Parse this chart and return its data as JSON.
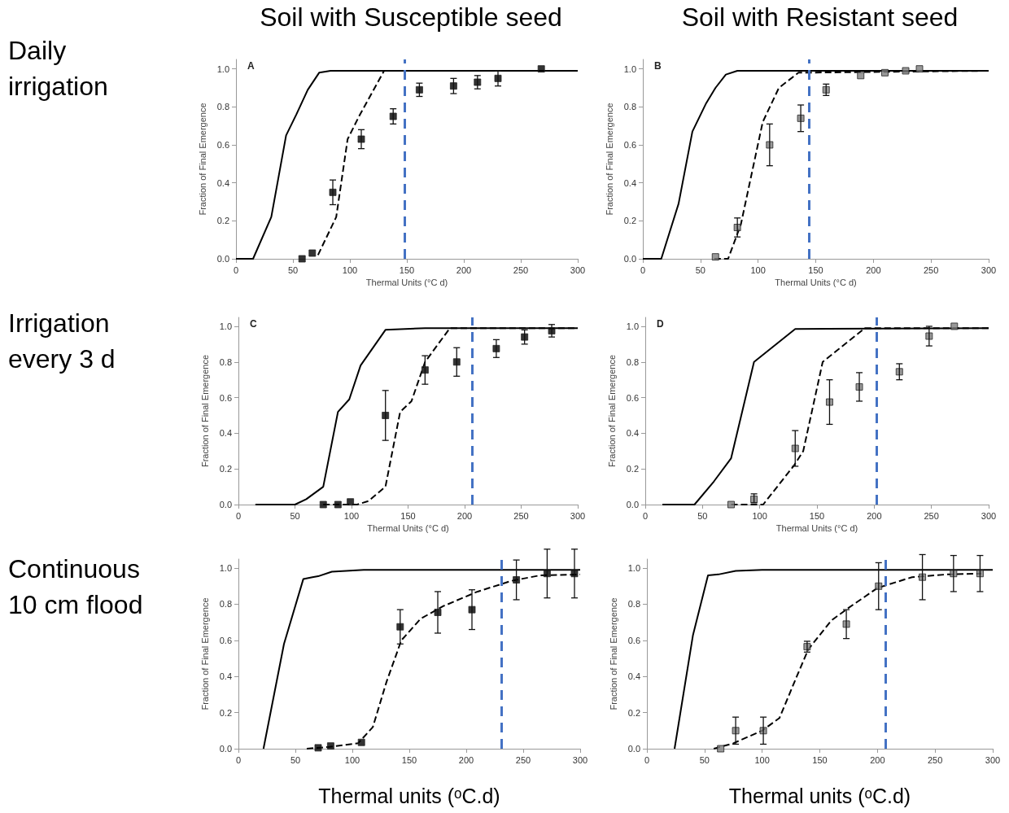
{
  "chart_data": [
    {
      "type": "line",
      "title": "Soil with Susceptible seed",
      "subtitle": "A",
      "annotations": [
        "Daily irrigation"
      ],
      "xlabel": "Thermal Units (°C d)",
      "ylabel": "Fraction of Final Emergence",
      "xlim": [
        0,
        300
      ],
      "ylim": [
        0,
        1.05
      ],
      "xticks": [
        0,
        50,
        100,
        150,
        200,
        250,
        300
      ],
      "yticks": [
        {
          "value": 0,
          "label": "0.0"
        },
        {
          "value": 0.2,
          "label": "0.2"
        },
        {
          "value": 0.4,
          "label": "0.4"
        },
        {
          "value": 0.6,
          "label": "0.6"
        },
        {
          "value": 0.8,
          "label": "0.8"
        },
        {
          "value": 1,
          "label": "1.0"
        }
      ],
      "series": [
        {
          "type": "line",
          "color": "#000000",
          "line_style": "solid",
          "marker": "none",
          "x": [
            0,
            15,
            31,
            44,
            53,
            63,
            73,
            83,
            300
          ],
          "values": [
            0,
            0,
            0.22,
            0.65,
            0.76,
            0.89,
            0.98,
            0.99,
            0.99
          ]
        },
        {
          "type": "line",
          "color": "#000000",
          "line_style": "dashed",
          "marker": "none",
          "x": [
            72,
            88,
            98,
            108,
            130,
            300
          ],
          "values": [
            0.02,
            0.22,
            0.63,
            0.75,
            0.99,
            0.99
          ]
        },
        {
          "type": "scatter",
          "color": "#000000",
          "marker": "square",
          "x": [
            58,
            67,
            85,
            110,
            138,
            161,
            191,
            212,
            230,
            268
          ],
          "values": [
            0,
            0.03,
            0.35,
            0.63,
            0.75,
            0.89,
            0.91,
            0.93,
            0.95,
            1.0
          ],
          "errors": [
            null,
            null,
            0.065,
            0.05,
            0.04,
            0.035,
            0.04,
            0.035,
            0.04,
            null
          ]
        }
      ],
      "ref_lines": [
        {
          "axis": "x",
          "value": 148,
          "color": "#4472c4",
          "line_style": "dashed"
        }
      ]
    },
    {
      "type": "line",
      "title": "Soil with Resistant seed",
      "subtitle": "B",
      "xlabel": "Thermal Units (°C d)",
      "ylabel": "Fraction of Final Emergence",
      "xlim": [
        0,
        300
      ],
      "ylim": [
        0,
        1.05
      ],
      "xticks": [
        0,
        50,
        100,
        150,
        200,
        250,
        300
      ],
      "yticks": [
        {
          "value": 0,
          "label": "0.0"
        },
        {
          "value": 0.2,
          "label": "0.2"
        },
        {
          "value": 0.4,
          "label": "0.4"
        },
        {
          "value": 0.6,
          "label": "0.6"
        },
        {
          "value": 0.8,
          "label": "0.8"
        },
        {
          "value": 1,
          "label": "1.0"
        }
      ],
      "series": [
        {
          "type": "line",
          "color": "#000000",
          "line_style": "solid",
          "marker": "none",
          "x": [
            0,
            16,
            31,
            43,
            55,
            63,
            72,
            82,
            300
          ],
          "values": [
            0,
            0,
            0.29,
            0.67,
            0.82,
            0.9,
            0.97,
            0.99,
            0.99
          ]
        },
        {
          "type": "line",
          "color": "#000000",
          "line_style": "dashed",
          "marker": "none",
          "x": [
            62,
            74,
            85,
            104,
            118,
            135,
            300
          ],
          "values": [
            0,
            0,
            0.18,
            0.72,
            0.9,
            0.98,
            0.99
          ]
        },
        {
          "type": "scatter",
          "color": "#808080",
          "marker": "square",
          "x": [
            63,
            82,
            110,
            137,
            159,
            189,
            210,
            228,
            240
          ],
          "values": [
            0.01,
            0.165,
            0.6,
            0.74,
            0.89,
            0.965,
            0.98,
            0.99,
            1.0
          ],
          "errors": [
            null,
            0.05,
            0.11,
            0.07,
            0.03,
            null,
            null,
            null,
            null
          ]
        }
      ],
      "ref_lines": [
        {
          "axis": "x",
          "value": 144,
          "color": "#4472c4",
          "line_style": "dashed"
        }
      ]
    },
    {
      "type": "line",
      "subtitle": "C",
      "annotations": [
        "Irrigation every 3 d"
      ],
      "xlabel": "Thermal Units (°C d)",
      "ylabel": "Fraction of Final Emergence",
      "xlim": [
        0,
        300
      ],
      "ylim": [
        0,
        1.05
      ],
      "xticks": [
        0,
        50,
        100,
        150,
        200,
        250,
        300
      ],
      "yticks": [
        {
          "value": 0,
          "label": "0.0"
        },
        {
          "value": 0.2,
          "label": "0.2"
        },
        {
          "value": 0.4,
          "label": "0.4"
        },
        {
          "value": 0.6,
          "label": "0.6"
        },
        {
          "value": 0.8,
          "label": "0.8"
        },
        {
          "value": 1,
          "label": "1.0"
        }
      ],
      "series": [
        {
          "type": "line",
          "color": "#000000",
          "line_style": "solid",
          "marker": "none",
          "x": [
            15,
            50,
            60,
            75,
            88,
            98,
            108,
            130,
            165,
            300
          ],
          "values": [
            0,
            0,
            0.03,
            0.1,
            0.52,
            0.59,
            0.78,
            0.98,
            0.99,
            0.99
          ]
        },
        {
          "type": "line",
          "color": "#000000",
          "line_style": "dashed",
          "marker": "none",
          "x": [
            75,
            105,
            115,
            130,
            143,
            153,
            165,
            187,
            300
          ],
          "values": [
            0,
            0,
            0.02,
            0.1,
            0.52,
            0.58,
            0.8,
            0.99,
            0.99
          ]
        },
        {
          "type": "scatter",
          "color": "#000000",
          "marker": "square",
          "x": [
            75,
            88,
            99,
            130,
            165,
            193,
            228,
            253,
            277
          ],
          "values": [
            0,
            0,
            0.015,
            0.5,
            0.755,
            0.8,
            0.875,
            0.94,
            0.975
          ],
          "errors": [
            null,
            null,
            null,
            0.14,
            0.08,
            0.08,
            0.05,
            0.04,
            0.035
          ]
        }
      ],
      "ref_lines": [
        {
          "axis": "x",
          "value": 207,
          "color": "#4472c4",
          "line_style": "dashed"
        }
      ]
    },
    {
      "type": "line",
      "subtitle": "D",
      "xlabel": "Thermal Units (°C d)",
      "ylabel": "Fraction of Final Emergence",
      "xlim": [
        0,
        300
      ],
      "ylim": [
        0,
        1.05
      ],
      "xticks": [
        0,
        50,
        100,
        150,
        200,
        250,
        300
      ],
      "yticks": [
        {
          "value": 0,
          "label": "0.0"
        },
        {
          "value": 0.2,
          "label": "0.2"
        },
        {
          "value": 0.4,
          "label": "0.4"
        },
        {
          "value": 0.6,
          "label": "0.6"
        },
        {
          "value": 0.8,
          "label": "0.8"
        },
        {
          "value": 1,
          "label": "1.0"
        }
      ],
      "series": [
        {
          "type": "line",
          "color": "#000000",
          "line_style": "solid",
          "marker": "none",
          "x": [
            15,
            43,
            60,
            75,
            95,
            131,
            300
          ],
          "values": [
            0,
            0,
            0.13,
            0.26,
            0.8,
            0.985,
            0.99
          ]
        },
        {
          "type": "line",
          "color": "#000000",
          "line_style": "dashed",
          "marker": "none",
          "x": [
            75,
            103,
            130,
            138,
            155,
            192,
            300
          ],
          "values": [
            0,
            0,
            0.22,
            0.3,
            0.8,
            0.99,
            0.99
          ]
        },
        {
          "type": "scatter",
          "color": "#808080",
          "marker": "square",
          "x": [
            75,
            95,
            131,
            161,
            187,
            222,
            248,
            270
          ],
          "values": [
            0,
            0.03,
            0.315,
            0.575,
            0.66,
            0.745,
            0.945,
            1.0
          ],
          "errors": [
            null,
            [
              0.01,
              0.06
            ],
            0.1,
            0.125,
            0.08,
            0.045,
            0.055,
            null
          ]
        }
      ],
      "ref_lines": [
        {
          "axis": "x",
          "value": 202,
          "color": "#4472c4",
          "line_style": "dashed"
        }
      ]
    },
    {
      "type": "line",
      "annotations": [
        "Continuous 10 cm flood"
      ],
      "xlabel": "Thermal units (ᵒC.d)",
      "ylabel": "Fraction of Final Emergence",
      "xlim": [
        0,
        300
      ],
      "ylim": [
        0,
        1.05
      ],
      "xticks": [
        0,
        50,
        100,
        150,
        200,
        250,
        300
      ],
      "yticks": [
        {
          "value": 0,
          "label": "0.0"
        },
        {
          "value": 0.2,
          "label": "0.2"
        },
        {
          "value": 0.4,
          "label": "0.4"
        },
        {
          "value": 0.6,
          "label": "0.6"
        },
        {
          "value": 0.8,
          "label": "0.8"
        },
        {
          "value": 1,
          "label": "1.0"
        }
      ],
      "series": [
        {
          "type": "line",
          "color": "#000000",
          "line_style": "solid",
          "marker": "none",
          "x": [
            22,
            40,
            57,
            65,
            70,
            82,
            110,
            300
          ],
          "values": [
            0,
            0.58,
            0.94,
            0.95,
            0.955,
            0.98,
            0.99,
            0.99
          ]
        },
        {
          "type": "line",
          "color": "#000000",
          "line_style": "dashed",
          "marker": "none",
          "x": [
            60,
            80,
            105,
            118,
            130,
            143,
            160,
            180,
            210,
            240,
            265,
            300
          ],
          "values": [
            0,
            0.01,
            0.03,
            0.12,
            0.37,
            0.6,
            0.72,
            0.79,
            0.87,
            0.93,
            0.96,
            0.965
          ]
        },
        {
          "type": "scatter",
          "color": "#000000",
          "marker": "square",
          "x": [
            70,
            81,
            108,
            142,
            175,
            205,
            244,
            271,
            295
          ],
          "values": [
            0.005,
            0.015,
            0.035,
            0.675,
            0.755,
            0.77,
            0.935,
            0.97,
            0.97
          ],
          "errors": [
            null,
            null,
            null,
            0.095,
            0.115,
            0.11,
            0.11,
            0.135,
            0.135
          ]
        }
      ],
      "ref_lines": [
        {
          "axis": "x",
          "value": 231,
          "color": "#4472c4",
          "line_style": "dashed"
        }
      ]
    },
    {
      "type": "line",
      "xlabel": "Thermal units (ᵒC.d)",
      "ylabel": "Fraction of Final Emergence",
      "xlim": [
        0,
        300
      ],
      "ylim": [
        0,
        1.05
      ],
      "xticks": [
        0,
        50,
        100,
        150,
        200,
        250,
        300
      ],
      "yticks": [
        {
          "value": 0,
          "label": "0.0"
        },
        {
          "value": 0.2,
          "label": "0.2"
        },
        {
          "value": 0.4,
          "label": "0.4"
        },
        {
          "value": 0.6,
          "label": "0.6"
        },
        {
          "value": 0.8,
          "label": "0.8"
        },
        {
          "value": 1,
          "label": "1.0"
        }
      ],
      "series": [
        {
          "type": "line",
          "color": "#000000",
          "line_style": "solid",
          "marker": "none",
          "x": [
            24,
            40,
            53,
            62,
            77,
            100,
            300
          ],
          "values": [
            0,
            0.63,
            0.96,
            0.965,
            0.985,
            0.99,
            0.99
          ]
        },
        {
          "type": "line",
          "color": "#000000",
          "line_style": "dashed",
          "marker": "none",
          "x": [
            58,
            75,
            100,
            115,
            130,
            140,
            160,
            175,
            200,
            230,
            260,
            290
          ],
          "values": [
            0,
            0.03,
            0.1,
            0.17,
            0.4,
            0.55,
            0.71,
            0.78,
            0.89,
            0.95,
            0.965,
            0.97
          ]
        },
        {
          "type": "scatter",
          "color": "#808080",
          "marker": "square",
          "x": [
            64,
            77,
            101,
            139,
            173,
            201,
            239,
            266,
            289
          ],
          "values": [
            0,
            0.1,
            0.1,
            0.565,
            0.69,
            0.9,
            0.95,
            0.97,
            0.97
          ],
          "errors": [
            null,
            0.075,
            0.075,
            0.03,
            0.08,
            0.13,
            0.125,
            0.1,
            0.1
          ]
        }
      ],
      "ref_lines": [
        {
          "axis": "x",
          "value": 207,
          "color": "#4472c4",
          "line_style": "dashed"
        }
      ]
    }
  ]
}
